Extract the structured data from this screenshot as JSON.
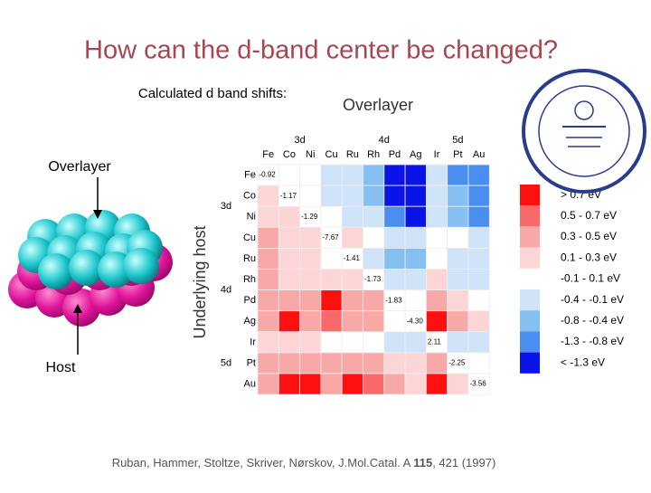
{
  "title": "How can the d-band center be changed?",
  "subtitle": "Calculated d band shifts:",
  "figure": {
    "label_overlayer": "Overlayer",
    "label_host": "Host"
  },
  "table": {
    "title": "Overlayer",
    "axis_label": "Underlying host",
    "groups": [
      "3d",
      "4d",
      "5d"
    ],
    "metals": [
      "Fe",
      "Co",
      "Ni",
      "Cu",
      "Ru",
      "Rh",
      "Pd",
      "Ag",
      "Ir",
      "Pt",
      "Au"
    ],
    "diagonal": [
      "-0.92",
      "-1.17",
      "-1.29",
      "-7.67",
      "-1.41",
      "-1.73",
      "-1.83",
      "-4.30",
      "2.11",
      "-2.25",
      "-3.56"
    ],
    "levels": [
      [
        4,
        4,
        4,
        5,
        5,
        6,
        8,
        8,
        5,
        7,
        7
      ],
      [
        3,
        4,
        4,
        5,
        5,
        6,
        8,
        8,
        5,
        6,
        7
      ],
      [
        3,
        3,
        4,
        4,
        5,
        5,
        7,
        8,
        5,
        6,
        7
      ],
      [
        2,
        3,
        3,
        4,
        3,
        4,
        5,
        5,
        4,
        4,
        5
      ],
      [
        2,
        3,
        3,
        4,
        4,
        5,
        6,
        6,
        4,
        5,
        5
      ],
      [
        2,
        3,
        3,
        3,
        3,
        4,
        5,
        5,
        3,
        5,
        5
      ],
      [
        2,
        2,
        2,
        0,
        2,
        2,
        4,
        4,
        2,
        3,
        4
      ],
      [
        2,
        0,
        2,
        1,
        2,
        2,
        4,
        4,
        0,
        2,
        3
      ],
      [
        3,
        3,
        3,
        4,
        4,
        4,
        5,
        5,
        4,
        5,
        5
      ],
      [
        2,
        2,
        2,
        2,
        2,
        2,
        3,
        3,
        2,
        4,
        4
      ],
      [
        2,
        0,
        0,
        2,
        0,
        1,
        2,
        3,
        0,
        3,
        4
      ]
    ]
  },
  "legend": [
    {
      "label": "> 0.7 eV",
      "color": "#ff1010"
    },
    {
      "label": "0.5 - 0.7 eV",
      "color": "#f86a6a"
    },
    {
      "label": "0.3 - 0.5 eV",
      "color": "#f9a8a8"
    },
    {
      "label": "0.1 - 0.3 eV",
      "color": "#fcd6d6"
    },
    {
      "label": "-0.1 - 0.1 eV",
      "color": "#ffffff"
    },
    {
      "label": "-0.4 - -0.1 eV",
      "color": "#cfe4f8"
    },
    {
      "label": "-0.8 - -0.4 eV",
      "color": "#86bff2"
    },
    {
      "label": "-1.3 - -0.8 eV",
      "color": "#4a8ff0"
    },
    {
      "label": "< -1.3 eV",
      "color": "#0a14e8"
    }
  ],
  "citation": {
    "authors": "Ruban, Hammer, Stoltze, Skriver, Nørskov,  J.Mol.Catal. A ",
    "volume": "115",
    "pages": ", 421 (1997)"
  }
}
